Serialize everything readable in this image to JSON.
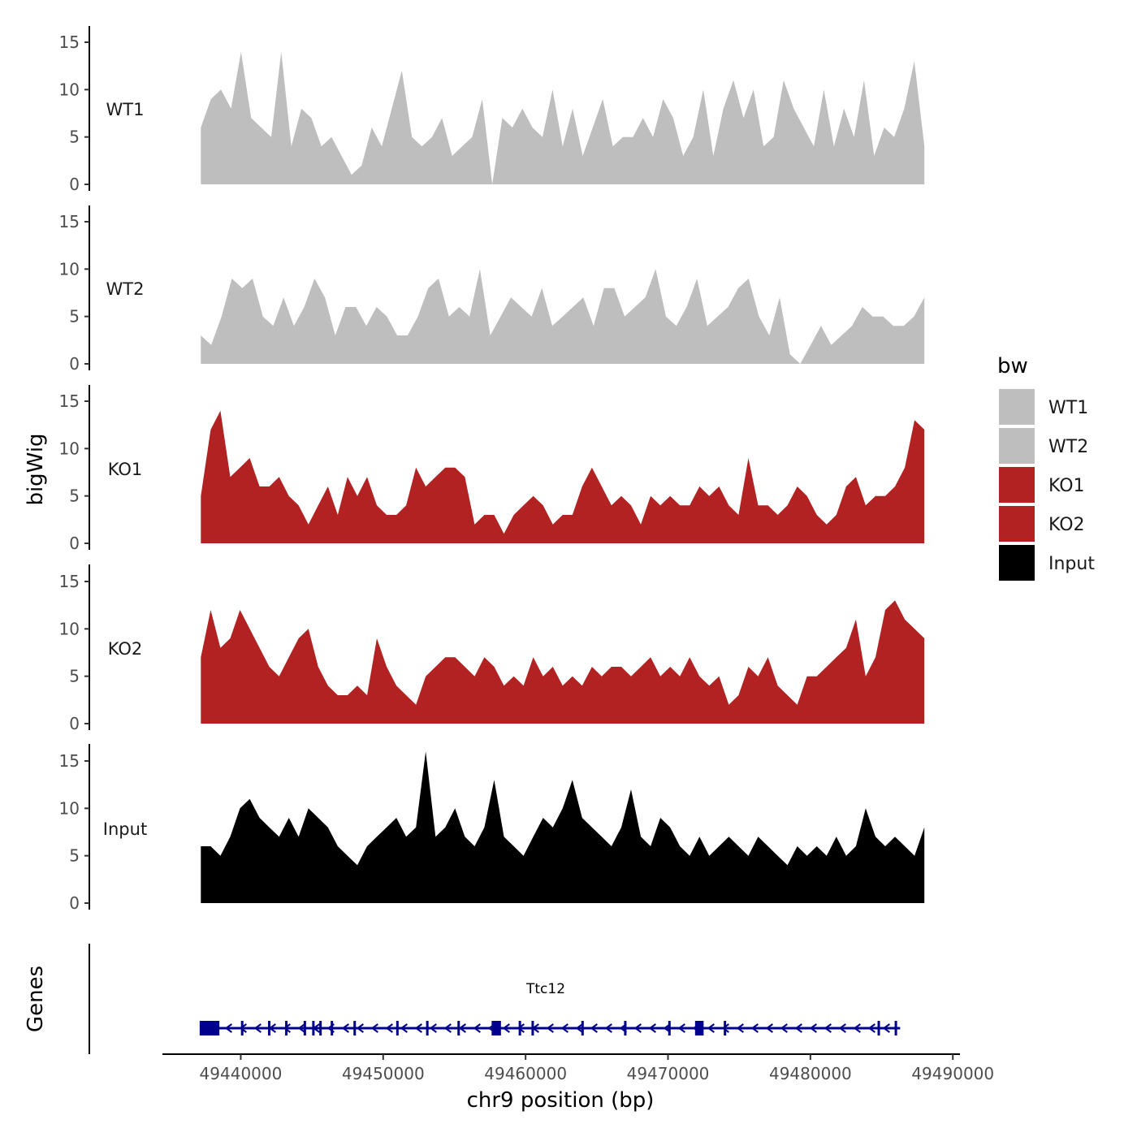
{
  "chart_data": {
    "type": "area",
    "title": "",
    "ylabel": "bigWig",
    "xlabel": "chr9 position (bp)",
    "genes_label": "Genes",
    "ylim": [
      0,
      16
    ],
    "y_ticks": [
      0,
      5,
      10,
      15
    ],
    "x_ticks": [
      49440000,
      49450000,
      49460000,
      49470000,
      49480000,
      49490000
    ],
    "xlim": [
      49434500,
      49490500
    ],
    "x_range": [
      49437200,
      49488000
    ],
    "legend": {
      "title": "bw",
      "entries": [
        {
          "label": "WT1",
          "color": "#bebebe"
        },
        {
          "label": "WT2",
          "color": "#bebebe"
        },
        {
          "label": "KO1",
          "color": "#b22222"
        },
        {
          "label": "KO2",
          "color": "#b22222"
        },
        {
          "label": "Input",
          "color": "#000000"
        }
      ]
    },
    "series": [
      {
        "name": "WT1",
        "color": "#bebebe",
        "values": [
          6,
          9,
          10,
          8,
          14,
          7,
          6,
          5,
          14,
          4,
          8,
          7,
          4,
          5,
          3,
          1,
          2,
          6,
          4,
          8,
          12,
          5,
          4,
          5,
          7,
          3,
          4,
          5,
          9,
          0,
          7,
          6,
          8,
          6,
          5,
          10,
          4,
          8,
          3,
          6,
          9,
          4,
          5,
          5,
          7,
          5,
          9,
          7,
          3,
          5,
          10,
          3,
          8,
          11,
          7,
          10,
          4,
          5,
          11,
          8,
          6,
          4,
          10,
          4,
          8,
          5,
          11,
          3,
          6,
          5,
          8,
          13,
          4
        ]
      },
      {
        "name": "WT2",
        "color": "#bebebe",
        "values": [
          3,
          2,
          5,
          9,
          8,
          9,
          5,
          4,
          7,
          4,
          6,
          9,
          7,
          3,
          6,
          6,
          4,
          6,
          5,
          3,
          3,
          5,
          8,
          9,
          5,
          6,
          5,
          10,
          3,
          5,
          7,
          6,
          5,
          8,
          4,
          5,
          6,
          7,
          4,
          8,
          8,
          5,
          6,
          7,
          10,
          5,
          4,
          6,
          9,
          4,
          5,
          6,
          8,
          9,
          5,
          3,
          7,
          1,
          0,
          2,
          4,
          2,
          3,
          4,
          6,
          5,
          5,
          4,
          4,
          5,
          7
        ]
      },
      {
        "name": "KO1",
        "color": "#b22222",
        "values": [
          5,
          12,
          14,
          7,
          8,
          9,
          6,
          6,
          7,
          5,
          4,
          2,
          4,
          6,
          3,
          7,
          5,
          7,
          4,
          3,
          3,
          4,
          8,
          6,
          7,
          8,
          8,
          7,
          2,
          3,
          3,
          1,
          3,
          4,
          5,
          4,
          2,
          3,
          3,
          6,
          8,
          6,
          4,
          5,
          4,
          2,
          5,
          4,
          5,
          4,
          4,
          6,
          5,
          6,
          4,
          3,
          9,
          4,
          4,
          3,
          4,
          6,
          5,
          3,
          2,
          3,
          6,
          7,
          4,
          5,
          5,
          6,
          8,
          13,
          12
        ]
      },
      {
        "name": "KO2",
        "color": "#b22222",
        "values": [
          7,
          12,
          8,
          9,
          12,
          10,
          8,
          6,
          5,
          7,
          9,
          10,
          6,
          4,
          3,
          3,
          4,
          3,
          9,
          6,
          4,
          3,
          2,
          5,
          6,
          7,
          7,
          6,
          5,
          7,
          6,
          4,
          5,
          4,
          7,
          5,
          6,
          4,
          5,
          4,
          6,
          5,
          6,
          6,
          5,
          6,
          7,
          5,
          6,
          5,
          7,
          5,
          4,
          5,
          2,
          3,
          6,
          5,
          7,
          4,
          3,
          2,
          5,
          5,
          6,
          7,
          8,
          11,
          5,
          7,
          12,
          13,
          11,
          10,
          9
        ]
      },
      {
        "name": "Input",
        "color": "#000000",
        "values": [
          6,
          6,
          5,
          7,
          10,
          11,
          9,
          8,
          7,
          9,
          7,
          10,
          9,
          8,
          6,
          5,
          4,
          6,
          7,
          8,
          9,
          7,
          8,
          16,
          7,
          8,
          10,
          7,
          6,
          8,
          13,
          7,
          6,
          5,
          7,
          9,
          8,
          10,
          13,
          9,
          8,
          7,
          6,
          8,
          12,
          7,
          6,
          9,
          8,
          6,
          5,
          7,
          5,
          6,
          7,
          6,
          5,
          7,
          6,
          5,
          4,
          6,
          5,
          6,
          5,
          7,
          5,
          6,
          10,
          7,
          6,
          7,
          6,
          5,
          8
        ]
      }
    ],
    "gene": {
      "name": "Ttc12",
      "start": 49437200,
      "end": 49486300,
      "strand": "-",
      "exons": [
        49437200,
        49437900,
        49440100,
        49442000,
        49443200,
        49444500,
        49445100,
        49445600,
        49446400,
        49448000,
        49451000,
        49453100,
        49455300,
        49457700,
        49459600,
        49460500,
        49464000,
        49467000,
        49470100,
        49472100,
        49474000,
        49484800,
        49486000
      ],
      "wide_exons": [
        [
          49437200,
          49438500
        ],
        [
          49457700,
          49458200
        ],
        [
          49471900,
          49472500
        ]
      ],
      "color": "#00008b"
    }
  }
}
